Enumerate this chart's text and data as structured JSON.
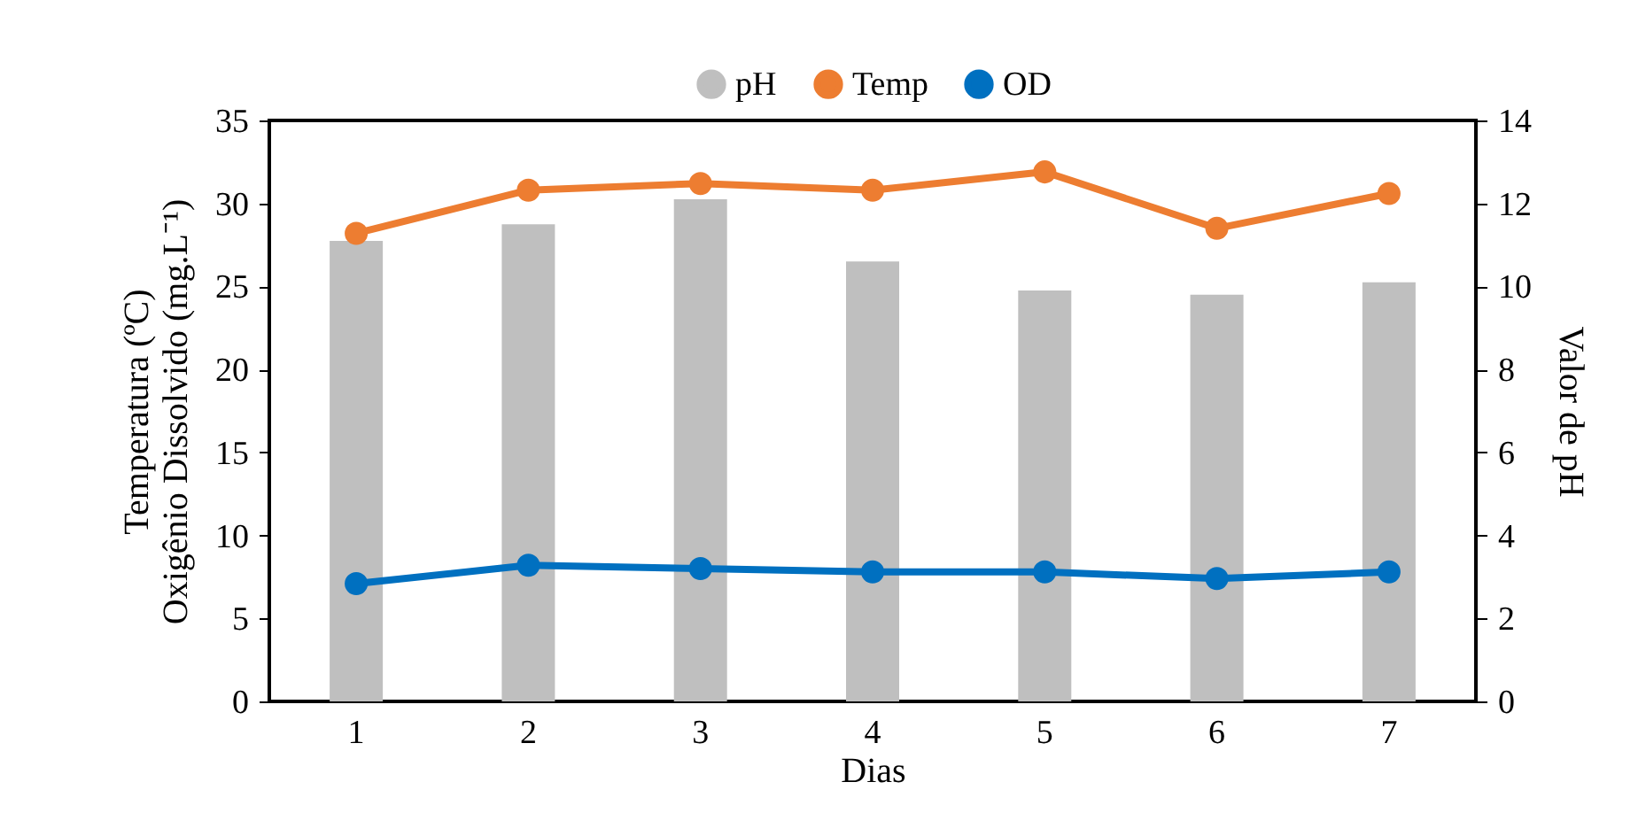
{
  "chart_data": {
    "type": "line",
    "xlabel": "Dias",
    "ylabel": "Temperatura (ºC)\nOxigênio  Dissolvido (mg.L⁻¹)",
    "y2label": "Valor de pH",
    "categories": [
      "1",
      "2",
      "3",
      "4",
      "5",
      "6",
      "7"
    ],
    "series": [
      {
        "name": "pH",
        "type": "bar",
        "axis": "y2",
        "color": "#bfbfbf",
        "values": [
          11.1,
          11.5,
          12.1,
          10.6,
          9.9,
          9.8,
          10.1
        ]
      },
      {
        "name": "Temp",
        "color": "#ed7d31",
        "values": [
          28.2,
          30.8,
          31.2,
          30.8,
          31.9,
          28.5,
          30.6
        ]
      },
      {
        "name": "OD",
        "color": "#0070c0",
        "values": [
          7.1,
          8.2,
          8.0,
          7.8,
          7.8,
          7.4,
          7.8
        ]
      }
    ],
    "ylim": [
      0,
      35
    ],
    "yticks": [
      0,
      5,
      10,
      15,
      20,
      25,
      30,
      35
    ],
    "y2lim": [
      0,
      14
    ],
    "y2ticks": [
      0,
      2,
      4,
      6,
      8,
      10,
      12,
      14
    ],
    "marker": "circle",
    "legend": "top",
    "grid": false
  }
}
